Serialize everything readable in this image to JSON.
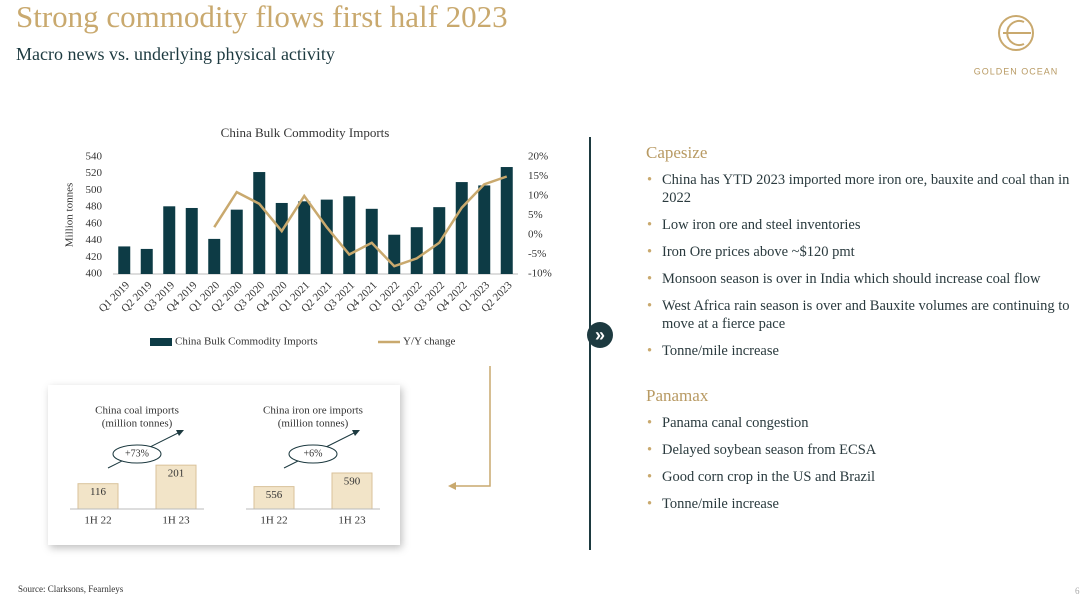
{
  "header": {
    "title": "Strong commodity flows first half 2023",
    "subtitle": "Macro news vs. underlying physical activity",
    "logo": "GOLDEN OCEAN"
  },
  "chart_data": [
    {
      "type": "bar",
      "title": "China Bulk Commodity Imports",
      "y_label": "Million tonnes",
      "categories": [
        "Q1 2019",
        "Q2 2019",
        "Q3 2019",
        "Q4 2019",
        "Q1 2020",
        "Q2 2020",
        "Q3 2020",
        "Q4 2020",
        "Q1 2021",
        "Q2 2021",
        "Q3 2021",
        "Q4 2021",
        "Q1 2022",
        "Q2 2022",
        "Q3 2022",
        "Q4 2022",
        "Q1 2023",
        "Q2 2023"
      ],
      "series": [
        {
          "name": "China Bulk Commodity Imports",
          "color": "#0d3b45",
          "values": [
            433,
            430,
            481,
            479,
            442,
            477,
            522,
            485,
            487,
            489,
            493,
            478,
            447,
            456,
            480,
            510,
            506,
            528
          ]
        },
        {
          "name": "Y/Y change",
          "color": "#c9a96e",
          "type": "line",
          "axis": "y2",
          "values": [
            null,
            null,
            null,
            null,
            2,
            11,
            8,
            1,
            10,
            2,
            -5,
            -2,
            -8,
            -6,
            -2,
            7,
            13,
            15
          ]
        }
      ],
      "ylim": [
        400,
        540
      ],
      "yticks": [
        400,
        420,
        440,
        460,
        480,
        500,
        520,
        540
      ],
      "y2lim": [
        -10,
        20
      ],
      "y2ticks": [
        {
          "value": -10,
          "label": "-10%"
        },
        {
          "value": -5,
          "label": "-5%"
        },
        {
          "value": 0,
          "label": "0%"
        },
        {
          "value": 5,
          "label": "5%"
        },
        {
          "value": 10,
          "label": "10%"
        },
        {
          "value": 15,
          "label": "15%"
        },
        {
          "value": 20,
          "label": "20%"
        }
      ],
      "legend": "bottom"
    },
    {
      "type": "bar",
      "title": "China coal imports",
      "subtitle": "(million tonnes)",
      "categories": [
        "1H 22",
        "1H 23"
      ],
      "values": [
        116,
        201
      ],
      "color": "#f2e4c8",
      "ylim": [
        0,
        220
      ],
      "annotation": "+73%"
    },
    {
      "type": "bar",
      "title": "China iron ore imports",
      "subtitle": "(million tonnes)",
      "categories": [
        "1H 22",
        "1H 23"
      ],
      "values": [
        556,
        590
      ],
      "color": "#f2e4c8",
      "ylim": [
        500,
        620
      ],
      "annotation": "+6%"
    }
  ],
  "panel": {
    "sections": [
      {
        "title": "Capesize",
        "bullets": [
          "China has YTD 2023 imported more iron ore, bauxite and coal than in 2022",
          "Low iron ore and steel inventories",
          "Iron Ore prices above ~$120 pmt",
          "Monsoon season is over in India which should increase coal flow",
          "West Africa rain season is over and Bauxite volumes are continuing to move at a fierce pace",
          "Tonne/mile increase"
        ]
      },
      {
        "title": "Panamax",
        "bullets": [
          "Panama canal congestion",
          "Delayed soybean season from ECSA",
          "Good corn crop in the US and Brazil",
          "Tonne/mile increase"
        ]
      }
    ]
  },
  "source": "Source: Clarksons, Fearnleys",
  "page_number": "6"
}
